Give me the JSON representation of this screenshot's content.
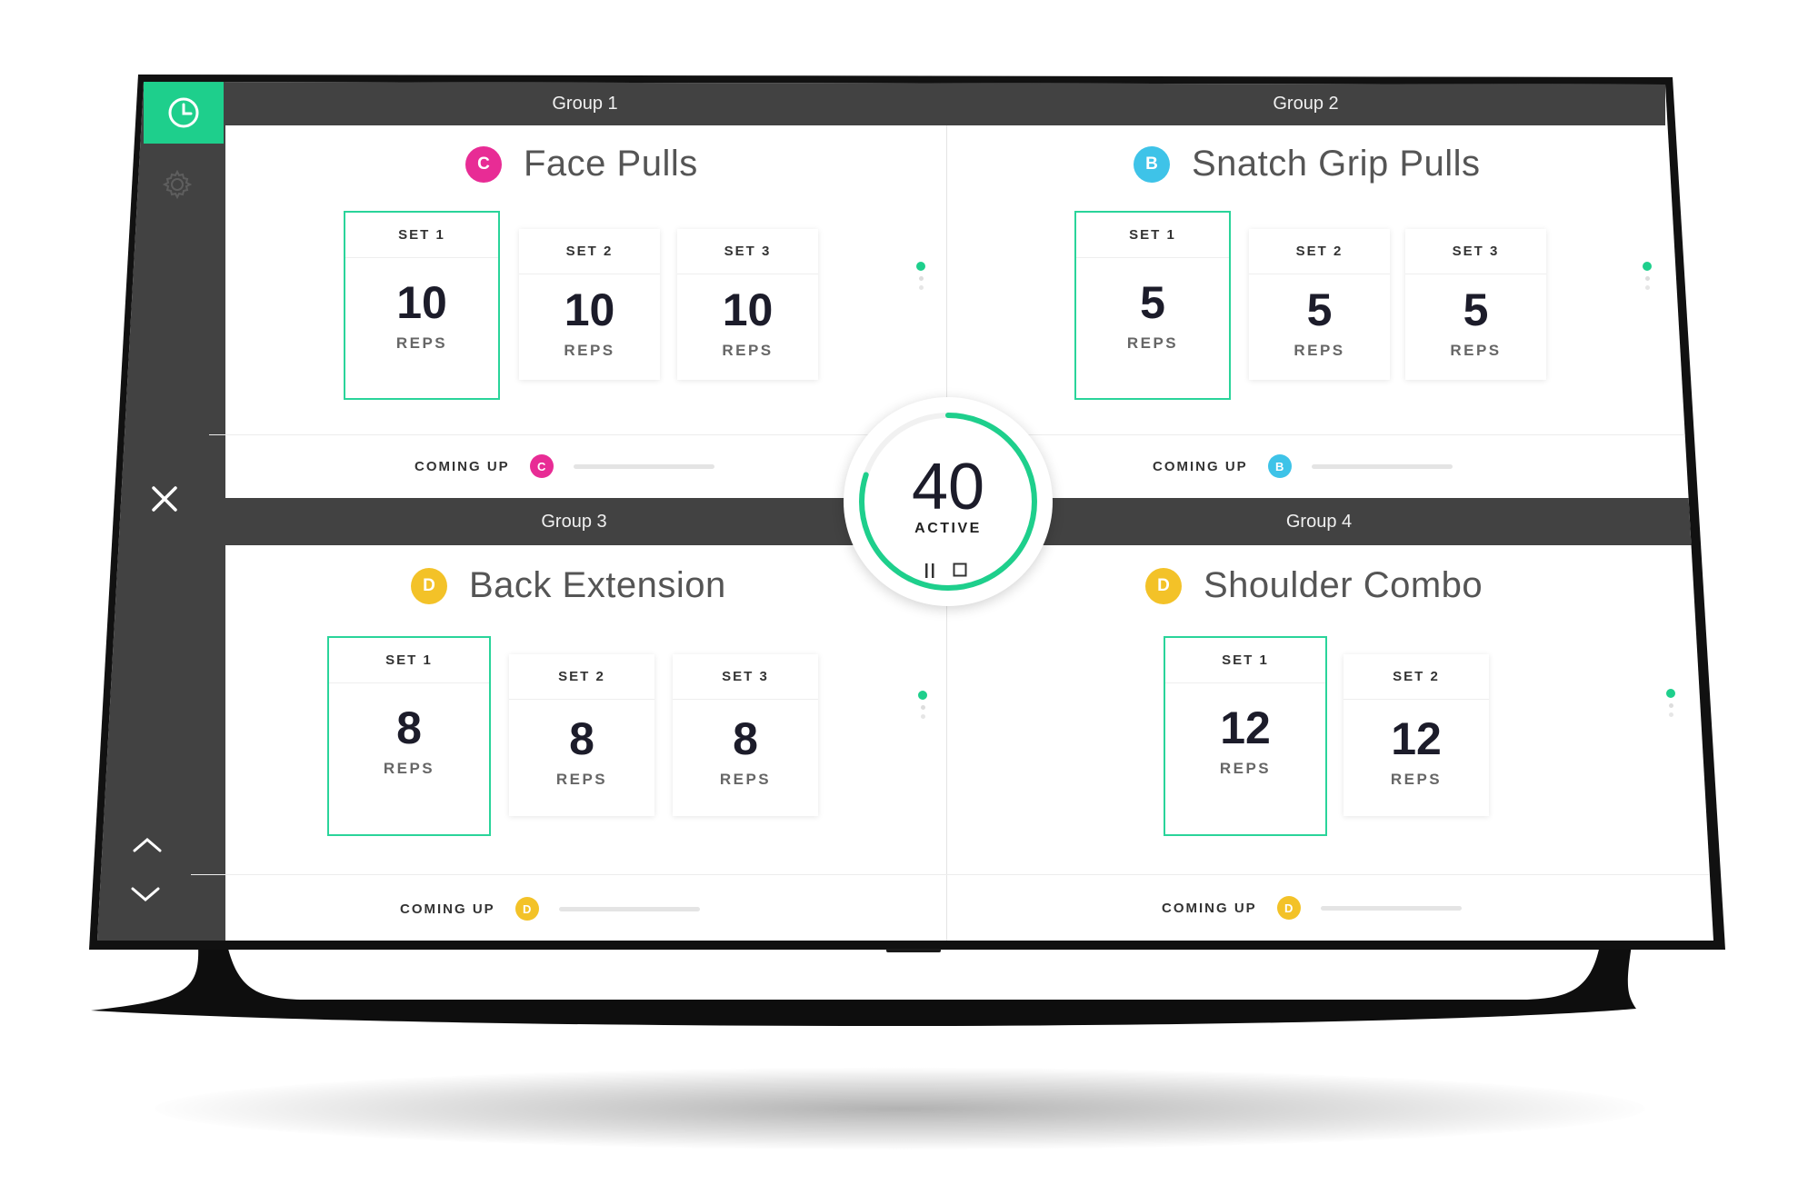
{
  "colors": {
    "accent": "#1ecf8c",
    "header_bg": "#424242",
    "badge_c": "#e82c95",
    "badge_b": "#3ec3e8",
    "badge_d": "#f3c228"
  },
  "sidebar": {
    "icons": [
      "clock-icon",
      "gear-icon",
      "close-icon",
      "chevron-up-icon",
      "chevron-down-icon"
    ]
  },
  "timer": {
    "value": "40",
    "label": "ACTIVE",
    "progress": 0.8,
    "controls": [
      "pause-icon",
      "stop-icon"
    ]
  },
  "groups": [
    {
      "header": "Group 1",
      "badge": "C",
      "exercise": "Face Pulls",
      "sets": [
        {
          "label": "SET 1",
          "reps": "10",
          "unit": "REPS"
        },
        {
          "label": "SET 2",
          "reps": "10",
          "unit": "REPS"
        },
        {
          "label": "SET 3",
          "reps": "10",
          "unit": "REPS"
        }
      ],
      "coming_up": {
        "label": "COMING UP",
        "badge": "C"
      }
    },
    {
      "header": "Group 2",
      "badge": "B",
      "exercise": "Snatch Grip Pulls",
      "sets": [
        {
          "label": "SET 1",
          "reps": "5",
          "unit": "REPS"
        },
        {
          "label": "SET 2",
          "reps": "5",
          "unit": "REPS"
        },
        {
          "label": "SET 3",
          "reps": "5",
          "unit": "REPS"
        }
      ],
      "coming_up": {
        "label": "COMING UP",
        "badge": "B"
      }
    },
    {
      "header": "Group 3",
      "badge": "D",
      "exercise": "Back Extension",
      "sets": [
        {
          "label": "SET 1",
          "reps": "8",
          "unit": "REPS"
        },
        {
          "label": "SET 2",
          "reps": "8",
          "unit": "REPS"
        },
        {
          "label": "SET 3",
          "reps": "8",
          "unit": "REPS"
        }
      ],
      "coming_up": {
        "label": "COMING UP",
        "badge": "D"
      }
    },
    {
      "header": "Group 4",
      "badge": "D",
      "exercise": "Shoulder Combo",
      "sets": [
        {
          "label": "SET 1",
          "reps": "12",
          "unit": "REPS"
        },
        {
          "label": "SET 2",
          "reps": "12",
          "unit": "REPS"
        }
      ],
      "coming_up": {
        "label": "COMING UP",
        "badge": "D"
      }
    }
  ]
}
